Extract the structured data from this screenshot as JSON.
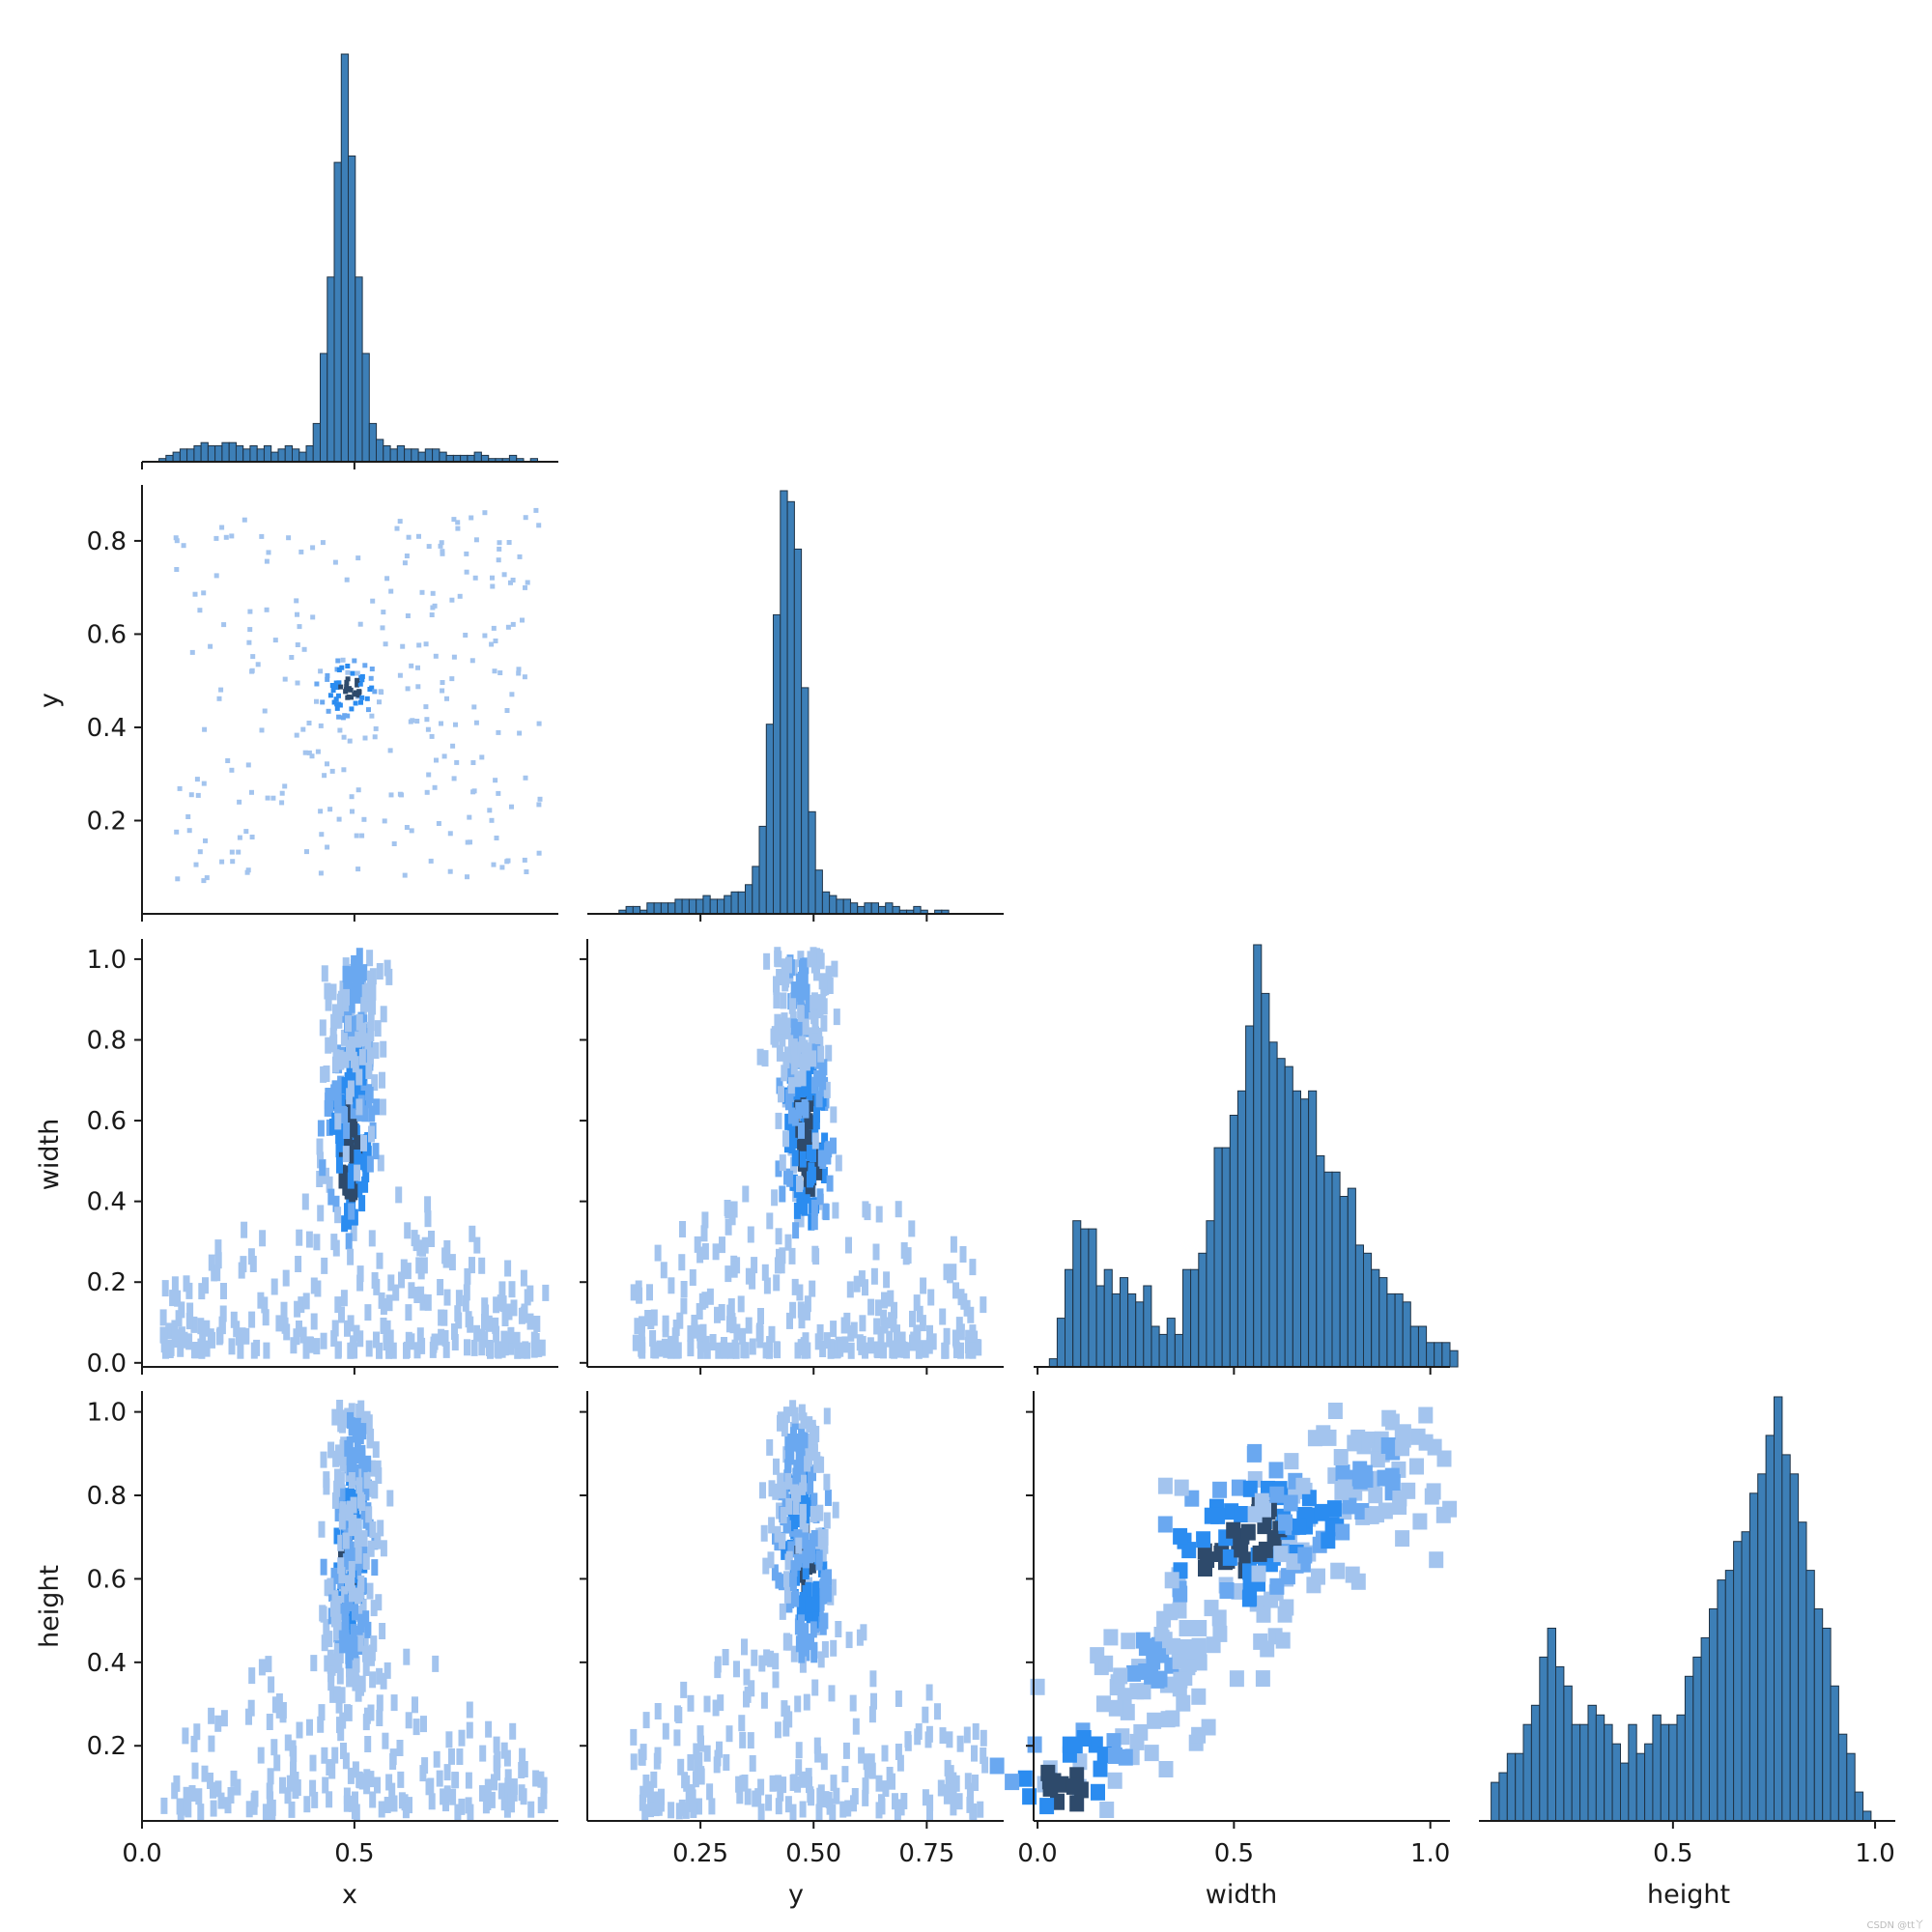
{
  "colors": {
    "bar_fill": "#3d7fb7",
    "bar_edge": "#1f3346",
    "scale_light": "#a3c4ee",
    "scale_mid": "#2b8cf0",
    "scale_dark": "#2e4a6b",
    "axis": "#1a1a1a"
  },
  "watermark": "CSDN @tt丫",
  "chart_data": {
    "type": "pairplot",
    "kind": "histogram",
    "corner": true,
    "variables": [
      "x",
      "y",
      "width",
      "height"
    ],
    "axis_labels": {
      "x": "x",
      "y": "y",
      "width": "width",
      "height": "height"
    },
    "ranges": {
      "x": [
        0.0,
        0.98
      ],
      "y": [
        0.0,
        0.92
      ],
      "width": [
        -0.01,
        1.05
      ],
      "height": [
        0.02,
        1.05
      ]
    },
    "ticks": {
      "x": [
        0.0,
        0.5
      ],
      "y_bottom": [
        0.25,
        0.5,
        0.75
      ],
      "y_left": [
        0.2,
        0.4,
        0.6,
        0.8
      ],
      "width": [
        0.0,
        0.5,
        1.0
      ],
      "width_left": [
        0.0,
        0.2,
        0.4,
        0.6,
        0.8,
        1.0
      ],
      "height": [
        0.5,
        1.0
      ],
      "height_left": [
        0.2,
        0.4,
        0.6,
        0.8,
        1.0
      ]
    },
    "tick_labels": {
      "x": [
        "0.0",
        "0.5"
      ],
      "y_bottom": [
        "0.25",
        "0.50",
        "0.75"
      ],
      "y_left": [
        "0.2",
        "0.4",
        "0.6",
        "0.8"
      ],
      "width": [
        "0.0",
        "0.5",
        "1.0"
      ],
      "width_left": [
        "0.0",
        "0.2",
        "0.4",
        "0.6",
        "0.8",
        "1.0"
      ],
      "height": [
        "0.5",
        "1.0"
      ],
      "height_left": [
        "0.2",
        "0.4",
        "0.6",
        "0.8",
        "1.0"
      ]
    },
    "diagonal": [
      {
        "variable": "x",
        "bin_start": 0.04,
        "bin_width": 0.0165,
        "counts": [
          1,
          2,
          3,
          4,
          4,
          5,
          6,
          5,
          5,
          6,
          6,
          5,
          4,
          5,
          4,
          5,
          3,
          4,
          5,
          4,
          3,
          5,
          12,
          34,
          58,
          94,
          128,
          96,
          58,
          34,
          12,
          7,
          5,
          4,
          5,
          4,
          4,
          3,
          4,
          4,
          3,
          2,
          2,
          2,
          2,
          3,
          2,
          1,
          1,
          1,
          2,
          1,
          0,
          1
        ]
      },
      {
        "variable": "y",
        "bin_start": 0.07,
        "bin_width": 0.0155,
        "counts": [
          1,
          2,
          2,
          1,
          3,
          3,
          3,
          3,
          4,
          4,
          4,
          4,
          5,
          4,
          4,
          5,
          6,
          6,
          8,
          13,
          24,
          52,
          82,
          116,
          113,
          100,
          62,
          28,
          12,
          6,
          5,
          4,
          4,
          3,
          2,
          3,
          3,
          2,
          3,
          2,
          1,
          1,
          2,
          1,
          0,
          1,
          1
        ]
      },
      {
        "variable": "width",
        "bin_start": 0.03,
        "bin_width": 0.02,
        "counts": [
          1,
          6,
          12,
          18,
          17,
          17,
          10,
          12,
          9,
          11,
          9,
          8,
          10,
          5,
          4,
          6,
          4,
          12,
          12,
          14,
          18,
          27,
          27,
          31,
          34,
          42,
          52,
          46,
          40,
          38,
          37,
          34,
          33,
          34,
          26,
          24,
          24,
          21,
          22,
          15,
          14,
          12,
          11,
          9,
          9,
          8,
          5,
          5,
          3,
          3,
          3,
          2
        ]
      },
      {
        "variable": "height",
        "bin_start": 0.05,
        "bin_width": 0.02,
        "counts": [
          4,
          5,
          7,
          7,
          10,
          12,
          17,
          20,
          16,
          14,
          10,
          10,
          12,
          11,
          10,
          8,
          6,
          10,
          7,
          8,
          11,
          10,
          10,
          11,
          15,
          17,
          19,
          22,
          25,
          26,
          29,
          30,
          34,
          36,
          40,
          44,
          38,
          36,
          31,
          26,
          22,
          20,
          14,
          9,
          7,
          3,
          1
        ]
      }
    ],
    "scatter_bins": [
      {
        "xvar": "x",
        "yvar": "y",
        "center_x": 0.49,
        "center_y": 0.48,
        "spread_x": 0.034,
        "spread_y": 0.032,
        "cores": [
          [
            0.49,
            0.48,
            3
          ]
        ],
        "note_counts": [
          4,
          3,
          2,
          1
        ]
      },
      {
        "xvar": "x",
        "yvar": "width",
        "cores": [
          [
            0.49,
            0.49,
            3
          ],
          [
            0.49,
            0.58,
            3
          ],
          [
            0.5,
            0.71,
            2
          ],
          [
            0.5,
            0.86,
            1
          ],
          [
            0.5,
            0.98,
            1
          ]
        ]
      },
      {
        "xvar": "y",
        "yvar": "width",
        "cores": [
          [
            0.49,
            0.5,
            3
          ],
          [
            0.48,
            0.6,
            3
          ],
          [
            0.48,
            0.72,
            2
          ],
          [
            0.47,
            0.87,
            1
          ],
          [
            0.47,
            0.98,
            1
          ]
        ]
      },
      {
        "xvar": "x",
        "yvar": "height",
        "cores": [
          [
            0.49,
            0.66,
            3
          ],
          [
            0.5,
            0.78,
            2
          ],
          [
            0.49,
            0.55,
            2
          ],
          [
            0.5,
            0.92,
            1
          ],
          [
            0.49,
            0.48,
            1
          ]
        ]
      },
      {
        "xvar": "y",
        "yvar": "height",
        "cores": [
          [
            0.48,
            0.66,
            3
          ],
          [
            0.47,
            0.78,
            2
          ],
          [
            0.49,
            0.55,
            2
          ],
          [
            0.46,
            0.9,
            1
          ]
        ]
      },
      {
        "xvar": "width",
        "yvar": "height",
        "cores": [
          [
            0.08,
            0.1,
            3
          ],
          [
            0.48,
            0.66,
            3
          ],
          [
            0.55,
            0.72,
            3
          ],
          [
            0.72,
            0.75,
            2
          ],
          [
            0.88,
            0.86,
            1
          ],
          [
            0.28,
            0.4,
            1
          ]
        ]
      }
    ]
  }
}
